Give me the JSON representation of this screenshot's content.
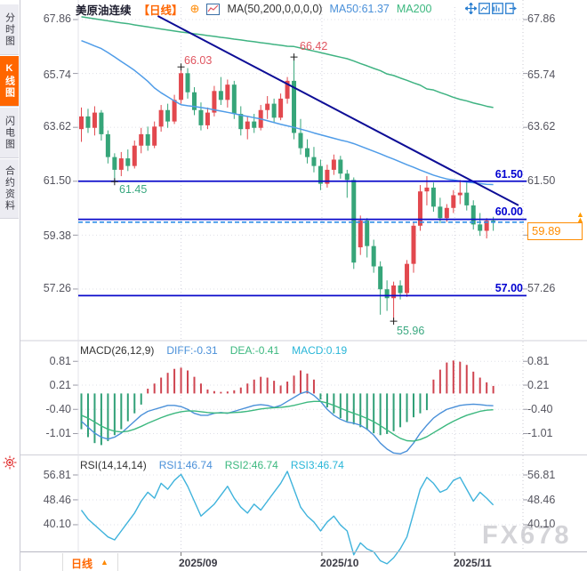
{
  "header": {
    "symbol": "美原油连续",
    "period_tag": "【日线】",
    "zoom_glyph": "⊕",
    "indicator": "MA(50,200,0,0,0,0)",
    "ma50": "MA50:61.37",
    "ma200": "MA200"
  },
  "toolbar": {
    "icons": [
      "pan",
      "fit-scale",
      "panel-layout",
      "pop-out"
    ]
  },
  "sidebar": {
    "tabs": [
      {
        "label": "分时图",
        "active": false
      },
      {
        "label": "K线图",
        "active": true
      },
      {
        "label": "闪电图",
        "active": false
      },
      {
        "label": "合约资料",
        "active": false
      }
    ]
  },
  "axes": {
    "main": [
      "67.86",
      "65.74",
      "63.62",
      "61.50",
      "59.38",
      "57.26"
    ],
    "macd": [
      "0.81",
      "0.21",
      "-0.40",
      "-1.01"
    ],
    "rsi": [
      "56.81",
      "48.46",
      "40.10"
    ]
  },
  "panels": {
    "macd": {
      "title": "MACD(26,12,9)",
      "diff": "DIFF:-0.31",
      "dea": "DEA:-0.41",
      "macd": "MACD:0.19"
    },
    "rsi": {
      "title": "RSI(14,14,14)",
      "rsi1": "RSI1:46.74",
      "rsi2": "RSI2:46.74",
      "rsi3": "RSI3:46.74"
    }
  },
  "levels": {
    "l1": "61.50",
    "l2": "60.00",
    "l3": "57.00",
    "current": "59.89"
  },
  "ann": {
    "a_high1": "66.03",
    "a_high2": "66.42",
    "a_low1": "61.45",
    "a_low2": "55.96"
  },
  "dates": [
    "2025/09",
    "2025/10",
    "2025/11"
  ],
  "bottom": {
    "period": "日线",
    "arrow": "▲"
  },
  "watermark": "FX678",
  "colors": {
    "up_candle": "#e2484e",
    "down_candle": "#36a579",
    "ma50": "#4f9ce8",
    "ma200": "#3fb382",
    "trendline": "#0d0d96",
    "level_line": "#0a0acb",
    "current_dash": "#2f8fe8",
    "current_label": "#ff8c00",
    "hist_pos": "#cf4450",
    "hist_neg": "#30a077",
    "diff_line": "#4a90d9",
    "dea_line": "#3cb87f",
    "rsi_line": "#3fb3dc",
    "accent": "#ff6600",
    "axis_text": "#55555f"
  },
  "chart_data": {
    "type": "candlestick-with-indicators",
    "x_dates": [
      {
        "label": "2025/09",
        "index": 15
      },
      {
        "label": "2025/10",
        "index": 36.2
      },
      {
        "label": "2025/11",
        "index": 56.2
      }
    ],
    "panels": [
      {
        "type": "candlestick",
        "yticks": [
          67.86,
          65.74,
          63.62,
          61.5,
          59.38,
          57.26
        ],
        "hlines": [
          61.5,
          60.0,
          57.0
        ],
        "current_price": 59.89,
        "trendline": {
          "start_index": 11.5,
          "start_price": 68.0,
          "end_index": 65.8,
          "end_price": 60.55
        },
        "annotations": [
          {
            "index": 5,
            "price": 61.45,
            "text": "61.45",
            "kind": "low"
          },
          {
            "index": 15,
            "price": 66.03,
            "text": "66.03",
            "kind": "high"
          },
          {
            "index": 32,
            "price": 66.42,
            "text": "66.42",
            "kind": "high"
          },
          {
            "index": 47,
            "price": 55.96,
            "text": "55.96",
            "kind": "low"
          }
        ],
        "candles": [
          [
            63.55,
            64.4,
            63.05,
            64.05
          ],
          [
            64.05,
            64.35,
            63.4,
            63.6
          ],
          [
            63.6,
            64.45,
            63.3,
            64.2
          ],
          [
            64.2,
            64.3,
            63.1,
            63.35
          ],
          [
            63.35,
            63.5,
            62.2,
            62.45
          ],
          [
            62.45,
            62.6,
            61.45,
            61.95
          ],
          [
            61.95,
            62.65,
            61.7,
            62.4
          ],
          [
            62.4,
            62.75,
            61.9,
            62.1
          ],
          [
            62.1,
            63.1,
            62.0,
            62.9
          ],
          [
            62.9,
            63.6,
            62.6,
            63.35
          ],
          [
            63.35,
            63.65,
            62.7,
            62.9
          ],
          [
            62.9,
            63.85,
            62.8,
            63.65
          ],
          [
            63.65,
            64.5,
            63.45,
            64.3
          ],
          [
            64.3,
            64.55,
            63.6,
            63.85
          ],
          [
            63.85,
            64.9,
            63.75,
            64.7
          ],
          [
            64.7,
            66.03,
            64.55,
            65.75
          ],
          [
            65.75,
            65.95,
            64.75,
            65.0
          ],
          [
            65.0,
            65.2,
            64.1,
            64.3
          ],
          [
            64.3,
            64.6,
            63.5,
            63.7
          ],
          [
            63.7,
            64.4,
            63.55,
            64.2
          ],
          [
            64.2,
            65.25,
            64.05,
            65.05
          ],
          [
            65.05,
            65.6,
            64.5,
            64.7
          ],
          [
            64.7,
            65.5,
            64.4,
            65.3
          ],
          [
            65.3,
            65.45,
            63.95,
            64.15
          ],
          [
            64.15,
            64.45,
            63.3,
            63.55
          ],
          [
            63.55,
            64.05,
            63.15,
            63.85
          ],
          [
            63.85,
            64.15,
            63.4,
            63.6
          ],
          [
            63.6,
            64.5,
            63.5,
            64.3
          ],
          [
            64.3,
            64.85,
            63.95,
            64.55
          ],
          [
            64.55,
            64.75,
            63.8,
            64.0
          ],
          [
            64.0,
            64.95,
            63.9,
            64.75
          ],
          [
            64.75,
            65.6,
            64.55,
            65.45
          ],
          [
            65.45,
            66.42,
            63.15,
            63.4
          ],
          [
            63.4,
            63.95,
            62.55,
            62.8
          ],
          [
            62.8,
            63.15,
            62.2,
            62.45
          ],
          [
            62.45,
            62.85,
            61.85,
            62.1
          ],
          [
            62.1,
            62.35,
            61.15,
            61.4
          ],
          [
            61.4,
            62.15,
            61.25,
            61.95
          ],
          [
            61.95,
            62.55,
            61.75,
            62.35
          ],
          [
            62.35,
            62.5,
            61.6,
            61.8
          ],
          [
            61.8,
            61.95,
            60.85,
            61.55
          ],
          [
            61.55,
            61.65,
            58.05,
            58.3
          ],
          [
            58.9,
            60.15,
            58.6,
            59.95
          ],
          [
            59.95,
            60.05,
            58.5,
            58.95
          ],
          [
            58.95,
            59.2,
            57.9,
            58.15
          ],
          [
            58.15,
            58.35,
            56.25,
            57.25
          ],
          [
            57.25,
            57.6,
            56.4,
            56.9
          ],
          [
            56.9,
            57.55,
            55.96,
            57.4
          ],
          [
            57.4,
            57.6,
            56.85,
            57.1
          ],
          [
            57.1,
            58.4,
            56.95,
            58.25
          ],
          [
            58.25,
            59.9,
            57.9,
            59.75
          ],
          [
            59.75,
            61.35,
            59.55,
            61.1
          ],
          [
            61.1,
            61.7,
            60.55,
            61.25
          ],
          [
            61.25,
            61.45,
            60.3,
            60.5
          ],
          [
            60.5,
            60.85,
            59.85,
            60.05
          ],
          [
            60.05,
            60.6,
            59.9,
            60.45
          ],
          [
            60.45,
            61.15,
            60.25,
            60.95
          ],
          [
            60.95,
            61.55,
            60.6,
            61.05
          ],
          [
            61.05,
            61.5,
            60.35,
            60.55
          ],
          [
            60.55,
            60.75,
            59.6,
            59.8
          ],
          [
            59.8,
            60.25,
            59.35,
            59.55
          ],
          [
            59.55,
            60.05,
            59.25,
            59.95
          ],
          [
            59.95,
            60.1,
            59.55,
            59.89
          ]
        ],
        "ma50": [
          67.03,
          66.93,
          66.82,
          66.72,
          66.56,
          66.39,
          66.21,
          66.04,
          65.86,
          65.65,
          65.43,
          65.17,
          64.98,
          64.82,
          64.66,
          64.51,
          64.47,
          64.44,
          64.4,
          64.36,
          64.31,
          64.26,
          64.21,
          64.16,
          64.1,
          64.05,
          64.0,
          63.95,
          63.88,
          63.81,
          63.74,
          63.68,
          63.62,
          63.55,
          63.48,
          63.4,
          63.33,
          63.26,
          63.19,
          63.12,
          63.06,
          62.98,
          62.88,
          62.78,
          62.68,
          62.58,
          62.47,
          62.37,
          62.26,
          62.15,
          62.05,
          61.94,
          61.84,
          61.74,
          61.66,
          61.59,
          61.55,
          61.51,
          61.47,
          61.44,
          61.41,
          61.38,
          61.37
        ],
        "ma200": [
          67.97,
          67.93,
          67.89,
          67.85,
          67.81,
          67.77,
          67.73,
          67.7,
          67.65,
          67.61,
          67.57,
          67.53,
          67.49,
          67.45,
          67.41,
          67.37,
          67.34,
          67.3,
          67.27,
          67.23,
          67.2,
          67.16,
          67.13,
          67.09,
          67.06,
          67.02,
          66.99,
          66.95,
          66.92,
          66.88,
          66.85,
          66.81,
          66.8,
          66.74,
          66.68,
          66.62,
          66.56,
          66.5,
          66.44,
          66.38,
          66.32,
          66.23,
          66.13,
          66.04,
          65.94,
          65.85,
          65.72,
          65.66,
          65.56,
          65.47,
          65.37,
          65.28,
          65.13,
          65.09,
          64.99,
          64.9,
          64.8,
          64.72,
          64.66,
          64.58,
          64.52,
          64.45,
          64.4
        ]
      },
      {
        "type": "macd",
        "yticks": [
          0.81,
          0.21,
          -0.4,
          -1.01
        ],
        "hist": [
          -0.9,
          -1.1,
          -1.25,
          -1.3,
          -1.2,
          -1.05,
          -0.9,
          -0.7,
          -0.5,
          -0.28,
          0.12,
          0.25,
          0.4,
          0.52,
          0.62,
          0.65,
          0.58,
          0.42,
          0.25,
          0.1,
          0.06,
          0.04,
          0.05,
          0.08,
          0.15,
          0.25,
          0.35,
          0.42,
          0.4,
          0.32,
          0.2,
          0.3,
          0.45,
          0.58,
          0.5,
          0.35,
          -0.15,
          -0.35,
          -0.5,
          -0.62,
          -0.7,
          -0.78,
          -0.85,
          -0.92,
          -1.0,
          -1.05,
          -1.02,
          -0.95,
          -0.85,
          -0.72,
          -0.6,
          -0.5,
          -0.42,
          0.35,
          0.6,
          0.78,
          0.83,
          0.8,
          0.72,
          0.55,
          0.4,
          0.28,
          0.19
        ],
        "diff": [
          -0.7,
          -0.85,
          -1.0,
          -1.1,
          -1.15,
          -1.1,
          -1.0,
          -0.85,
          -0.7,
          -0.55,
          -0.45,
          -0.4,
          -0.35,
          -0.3,
          -0.3,
          -0.33,
          -0.4,
          -0.5,
          -0.55,
          -0.55,
          -0.5,
          -0.48,
          -0.5,
          -0.45,
          -0.4,
          -0.35,
          -0.3,
          -0.28,
          -0.3,
          -0.35,
          -0.3,
          -0.2,
          -0.1,
          0.0,
          0.05,
          -0.05,
          -0.2,
          -0.4,
          -0.55,
          -0.65,
          -0.72,
          -0.75,
          -0.8,
          -0.9,
          -1.05,
          -1.25,
          -1.4,
          -1.5,
          -1.52,
          -1.45,
          -1.25,
          -1.0,
          -0.8,
          -0.62,
          -0.5,
          -0.4,
          -0.35,
          -0.3,
          -0.28,
          -0.27,
          -0.28,
          -0.3,
          -0.31
        ],
        "dea": [
          -0.55,
          -0.62,
          -0.72,
          -0.82,
          -0.9,
          -0.95,
          -0.97,
          -0.95,
          -0.9,
          -0.83,
          -0.75,
          -0.68,
          -0.61,
          -0.55,
          -0.5,
          -0.46,
          -0.44,
          -0.44,
          -0.46,
          -0.48,
          -0.49,
          -0.49,
          -0.49,
          -0.48,
          -0.47,
          -0.45,
          -0.42,
          -0.39,
          -0.37,
          -0.36,
          -0.35,
          -0.33,
          -0.3,
          -0.26,
          -0.22,
          -0.2,
          -0.2,
          -0.24,
          -0.3,
          -0.37,
          -0.44,
          -0.5,
          -0.56,
          -0.63,
          -0.71,
          -0.81,
          -0.92,
          -1.03,
          -1.13,
          -1.19,
          -1.2,
          -1.16,
          -1.09,
          -0.99,
          -0.89,
          -0.79,
          -0.7,
          -0.62,
          -0.55,
          -0.5,
          -0.45,
          -0.42,
          -0.41
        ]
      },
      {
        "type": "rsi",
        "yticks": [
          56.81,
          48.46,
          40.1
        ],
        "rsi": [
          45,
          42,
          40,
          38,
          36,
          35,
          38,
          41,
          44,
          48,
          51,
          49,
          54,
          52,
          55,
          57,
          53,
          48,
          43,
          45,
          47,
          50,
          53,
          49,
          46,
          44,
          47,
          45,
          48,
          51,
          54,
          58,
          52,
          46,
          43,
          41,
          38,
          41,
          43,
          40,
          38,
          30,
          34,
          32,
          31,
          28,
          27,
          29,
          32,
          36,
          44,
          52,
          56,
          54,
          51,
          52,
          55,
          56,
          52,
          48,
          51,
          49,
          46.74
        ]
      }
    ]
  }
}
